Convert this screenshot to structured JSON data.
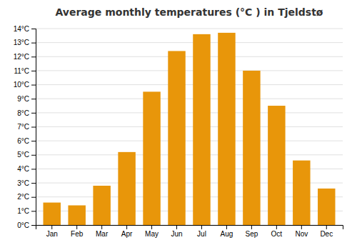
{
  "chart_data": {
    "type": "bar",
    "title": "Average monthly temperatures (°C ) in Tjeldstø",
    "categories": [
      "Jan",
      "Feb",
      "Mar",
      "Apr",
      "May",
      "Jun",
      "Jul",
      "Aug",
      "Sep",
      "Oct",
      "Nov",
      "Dec"
    ],
    "values": [
      1.6,
      1.4,
      2.8,
      5.2,
      9.5,
      12.4,
      13.6,
      13.7,
      11.0,
      8.5,
      4.6,
      2.6
    ],
    "color": "#E8960A",
    "ylim": [
      0,
      14
    ],
    "yticks": [
      {
        "value": 0,
        "label": "0°C"
      },
      {
        "value": 1,
        "label": "1°C"
      },
      {
        "value": 2,
        "label": "2°C"
      },
      {
        "value": 3,
        "label": "3°C"
      },
      {
        "value": 4,
        "label": "4°C"
      },
      {
        "value": 5,
        "label": "5°C"
      },
      {
        "value": 6,
        "label": "6°C"
      },
      {
        "value": 7,
        "label": "7°C"
      },
      {
        "value": 8,
        "label": "8°C"
      },
      {
        "value": 9,
        "label": "9°C"
      },
      {
        "value": 10,
        "label": "10°C"
      },
      {
        "value": 11,
        "label": "11°C"
      },
      {
        "value": 12,
        "label": "12°C"
      },
      {
        "value": 13,
        "label": "13°C"
      },
      {
        "value": 14,
        "label": "14°C"
      }
    ],
    "grid": true
  }
}
